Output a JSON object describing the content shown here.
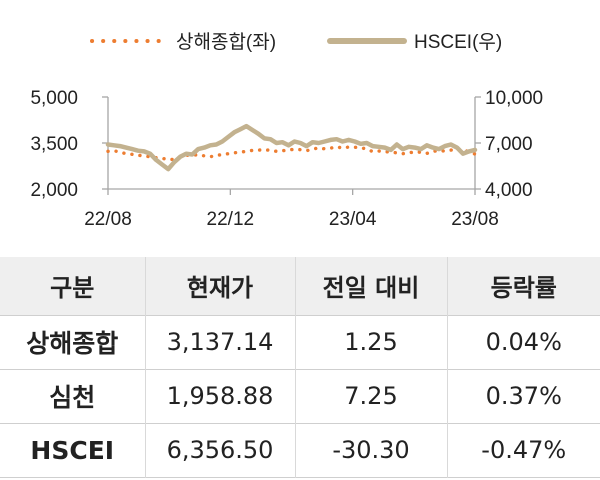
{
  "chart_data": {
    "type": "line",
    "x_ticks": [
      "22/08",
      "22/12",
      "23/04",
      "23/08"
    ],
    "y_left": {
      "ticks": [
        "5,000",
        "3,500",
        "2,000"
      ],
      "range": [
        2000,
        5000
      ]
    },
    "y_right": {
      "ticks": [
        "10,000",
        "7,000",
        "4,000"
      ],
      "range": [
        4000,
        10000
      ]
    },
    "grid": false,
    "legend_position": "top",
    "series": [
      {
        "name": "상해종합(좌)",
        "axis": "left",
        "style": "dotted",
        "color": "#ed7d31",
        "values": [
          3230,
          3250,
          3200,
          3150,
          3130,
          3100,
          3080,
          3050,
          3020,
          3000,
          2960,
          2970,
          3050,
          3100,
          3100,
          3120,
          3080,
          3050,
          3100,
          3120,
          3150,
          3180,
          3200,
          3230,
          3260,
          3270,
          3280,
          3260,
          3230,
          3250,
          3270,
          3300,
          3280,
          3250,
          3300,
          3340,
          3310,
          3330,
          3380,
          3330,
          3370,
          3360,
          3350,
          3300,
          3220,
          3240,
          3220,
          3200,
          3180,
          3150,
          3180,
          3210,
          3200,
          3160,
          3230,
          3250,
          3240,
          3270,
          3280,
          3300,
          3200,
          3140
        ]
      },
      {
        "name": "HSCEI(우)",
        "axis": "right",
        "style": "solid",
        "color": "#c3b28f",
        "values": [
          6900,
          6850,
          6800,
          6700,
          6600,
          6500,
          6450,
          6300,
          5900,
          5600,
          5300,
          5750,
          6100,
          6300,
          6250,
          6600,
          6700,
          6850,
          6900,
          7100,
          7400,
          7700,
          7900,
          8100,
          7850,
          7600,
          7300,
          7250,
          7000,
          7050,
          6850,
          7100,
          7000,
          6800,
          7050,
          7000,
          7100,
          7200,
          7250,
          7100,
          7200,
          7100,
          6950,
          7000,
          6800,
          6750,
          6700,
          6550,
          6900,
          6600,
          6750,
          6700,
          6600,
          6850,
          6700,
          6600,
          6800,
          6900,
          6700,
          6300,
          6450,
          6550
        ]
      }
    ]
  },
  "table": {
    "headers": [
      "구분",
      "현재가",
      "전일 대비",
      "등락률"
    ],
    "rows": [
      [
        "상해종합",
        "3,137.14",
        "1.25",
        "0.04%"
      ],
      [
        "심천",
        "1,958.88",
        "7.25",
        "0.37%"
      ],
      [
        "HSCEI",
        "6,356.50",
        "-30.30",
        "-0.47%"
      ]
    ]
  }
}
